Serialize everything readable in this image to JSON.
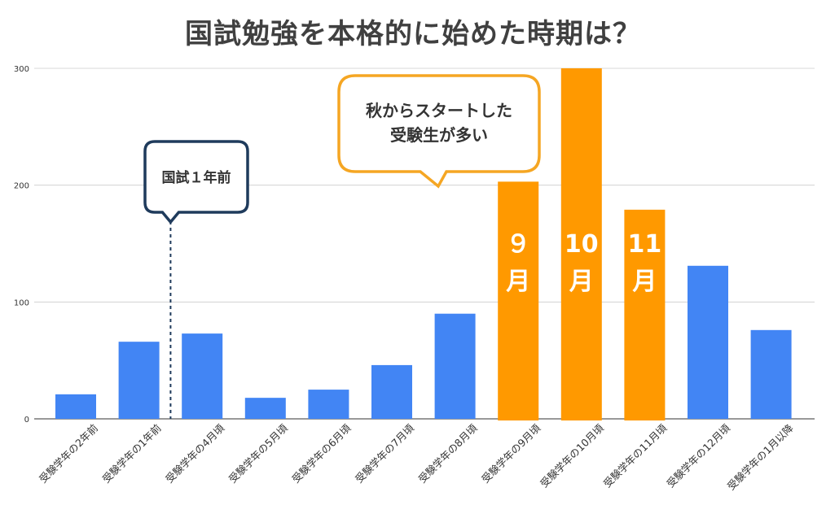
{
  "chart_data": {
    "type": "bar",
    "title": "国試勉強を本格的に始めた時期は？",
    "xlabel": "",
    "ylabel": "",
    "ylim": [
      0,
      300
    ],
    "yticks": [
      0,
      100,
      200,
      300
    ],
    "grid": true,
    "categories": [
      "受験学年の2年前",
      "受験学年の1年前",
      "受験学年の4月頃",
      "受験学年の5月頃",
      "受験学年の6月頃",
      "受験学年の7月頃",
      "受験学年の8月頃",
      "受験学年の9月頃",
      "受験学年の10月頃",
      "受験学年の11月頃",
      "受験学年の12月頃",
      "受験学年の1月以降"
    ],
    "values": [
      21,
      66,
      73,
      18,
      25,
      46,
      90,
      203,
      300,
      179,
      131,
      76
    ],
    "highlight_indices": [
      7,
      8,
      9
    ],
    "bar_labels": [
      "",
      "",
      "",
      "",
      "",
      "",
      "",
      "９\n月",
      "10\n月",
      "11\n月",
      "",
      ""
    ],
    "colors": {
      "default": "#4285f4",
      "highlight": "#ff9900",
      "callout_navy": "#1f3b5c",
      "callout_orange": "#f5a623"
    },
    "annotations": [
      {
        "text": "国試１年前",
        "between_categories": [
          1,
          2
        ]
      },
      {
        "text": "秋からスタートした\n受験生が多い",
        "points_to_category": 7
      }
    ]
  }
}
